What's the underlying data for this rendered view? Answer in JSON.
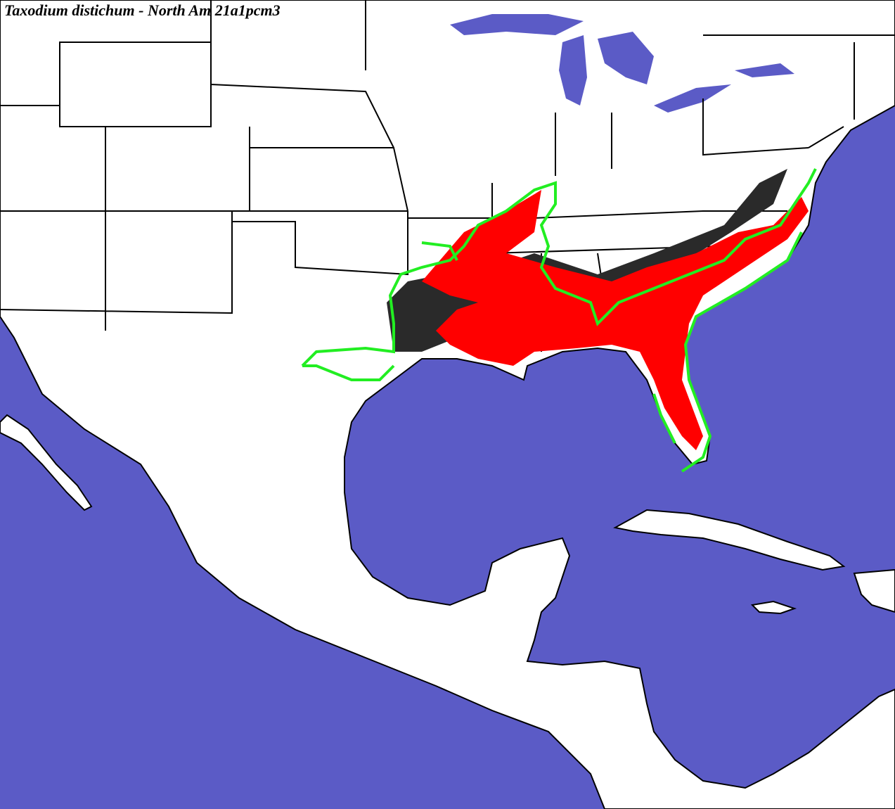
{
  "title": "Taxodium distichum - North Am 21a1pcm3"
}
